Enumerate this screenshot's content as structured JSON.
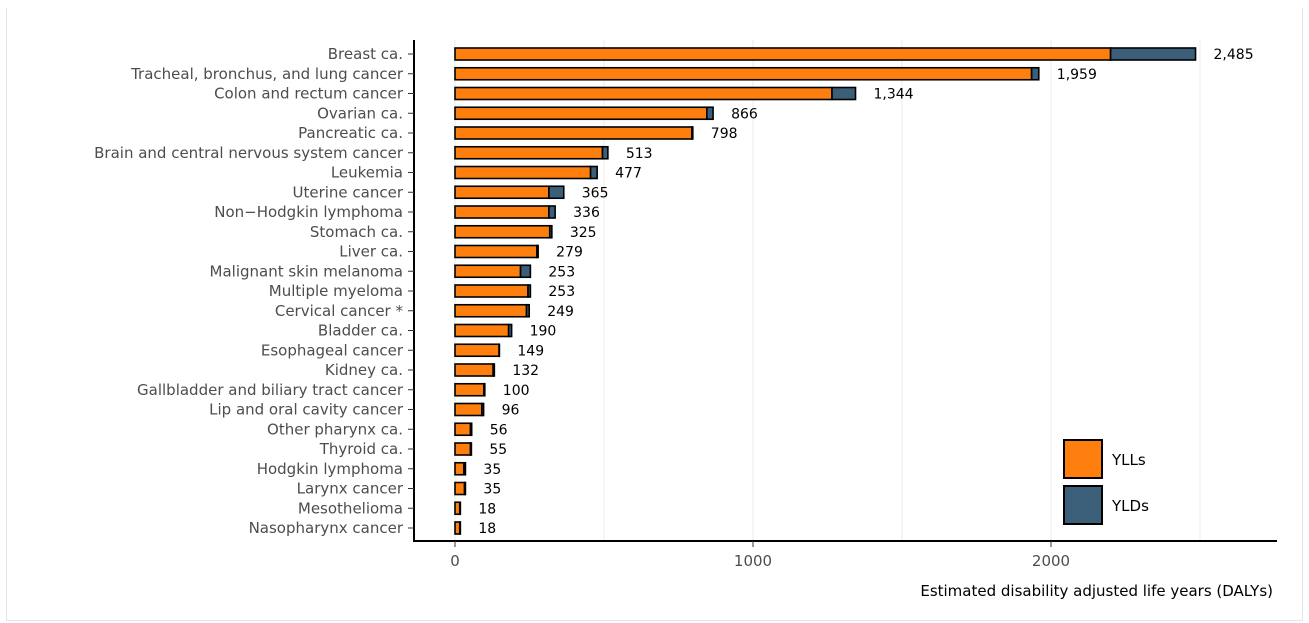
{
  "chart_data": {
    "type": "bar",
    "orientation": "horizontal",
    "stacked": true,
    "xlabel": "Estimated disability adjusted life years (DALYs)",
    "ylabel": "",
    "xlim": [
      0,
      2750
    ],
    "x_ticks": [
      0,
      1000,
      2000
    ],
    "x_tick_labels": [
      "0",
      "1000",
      "2000"
    ],
    "grid": "vertical-major",
    "legend_position": "bottom-right",
    "categories": [
      "Breast ca.",
      "Tracheal, bronchus, and lung cancer",
      "Colon and rectum cancer",
      "Ovarian ca.",
      "Pancreatic ca.",
      "Brain and central nervous system cancer",
      "Leukemia",
      "Uterine cancer",
      "Non−Hodgkin lymphoma",
      "Stomach ca.",
      "Liver ca.",
      "Malignant skin melanoma",
      "Multiple myeloma",
      "Cervical cancer *",
      "Bladder ca.",
      "Esophageal cancer",
      "Kidney ca.",
      "Gallbladder and biliary tract cancer",
      "Lip and oral cavity cancer",
      "Other pharynx ca.",
      "Thyroid ca.",
      "Hodgkin lymphoma",
      "Larynx cancer",
      "Mesothelioma",
      "Nasopharynx cancer"
    ],
    "series": [
      {
        "name": "YLLs",
        "color": "#ff7f0e",
        "values": [
          2200,
          1935,
          1265,
          845,
          795,
          495,
          455,
          315,
          315,
          318,
          275,
          220,
          245,
          240,
          180,
          148,
          128,
          97,
          90,
          52,
          52,
          30,
          32,
          16,
          16
        ]
      },
      {
        "name": "YLDs",
        "color": "#3b5f78",
        "values": [
          285,
          24,
          79,
          21,
          3,
          18,
          22,
          50,
          21,
          7,
          4,
          33,
          8,
          9,
          10,
          1,
          4,
          3,
          6,
          4,
          3,
          5,
          3,
          2,
          2
        ]
      }
    ],
    "total_labels": [
      "2,485",
      "1,959",
      "1,344",
      "866",
      "798",
      "513",
      "477",
      "365",
      "336",
      "325",
      "279",
      "253",
      "253",
      "249",
      "190",
      "149",
      "132",
      "100",
      "96",
      "56",
      "55",
      "35",
      "35",
      "18",
      "18"
    ]
  }
}
